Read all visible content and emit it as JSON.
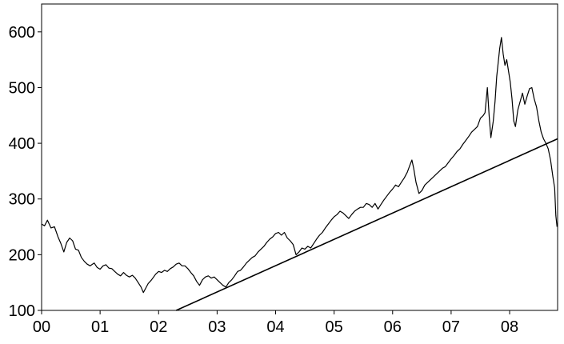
{
  "chart_data": {
    "type": "line",
    "title": "",
    "xlabel": "",
    "ylabel": "",
    "x_ticks": [
      {
        "x": 0,
        "label": "00"
      },
      {
        "x": 1,
        "label": "01"
      },
      {
        "x": 2,
        "label": "02"
      },
      {
        "x": 3,
        "label": "03"
      },
      {
        "x": 4,
        "label": "04"
      },
      {
        "x": 5,
        "label": "05"
      },
      {
        "x": 6,
        "label": "06"
      },
      {
        "x": 7,
        "label": "07"
      },
      {
        "x": 8,
        "label": "08"
      }
    ],
    "y_ticks": [
      100,
      200,
      300,
      400,
      500,
      600
    ],
    "xlim": [
      0,
      8.82
    ],
    "ylim": [
      100,
      650
    ],
    "grid": false,
    "legend": "none",
    "series": [
      {
        "color": "#000000",
        "points": [
          [
            0.0,
            255
          ],
          [
            0.05,
            252
          ],
          [
            0.1,
            262
          ],
          [
            0.16,
            248
          ],
          [
            0.22,
            250
          ],
          [
            0.28,
            232
          ],
          [
            0.33,
            220
          ],
          [
            0.38,
            205
          ],
          [
            0.43,
            222
          ],
          [
            0.48,
            230
          ],
          [
            0.53,
            225
          ],
          [
            0.58,
            210
          ],
          [
            0.63,
            208
          ],
          [
            0.68,
            195
          ],
          [
            0.73,
            188
          ],
          [
            0.78,
            183
          ],
          [
            0.83,
            180
          ],
          [
            0.9,
            185
          ],
          [
            0.95,
            177
          ],
          [
            1.0,
            174
          ],
          [
            1.05,
            180
          ],
          [
            1.1,
            182
          ],
          [
            1.15,
            176
          ],
          [
            1.2,
            175
          ],
          [
            1.25,
            170
          ],
          [
            1.3,
            165
          ],
          [
            1.35,
            162
          ],
          [
            1.4,
            168
          ],
          [
            1.45,
            163
          ],
          [
            1.5,
            160
          ],
          [
            1.55,
            163
          ],
          [
            1.6,
            158
          ],
          [
            1.65,
            150
          ],
          [
            1.7,
            142
          ],
          [
            1.74,
            132
          ],
          [
            1.78,
            140
          ],
          [
            1.82,
            148
          ],
          [
            1.88,
            155
          ],
          [
            1.95,
            165
          ],
          [
            2.0,
            170
          ],
          [
            2.05,
            168
          ],
          [
            2.1,
            172
          ],
          [
            2.15,
            170
          ],
          [
            2.2,
            175
          ],
          [
            2.25,
            178
          ],
          [
            2.3,
            183
          ],
          [
            2.35,
            185
          ],
          [
            2.4,
            180
          ],
          [
            2.45,
            180
          ],
          [
            2.5,
            175
          ],
          [
            2.55,
            168
          ],
          [
            2.6,
            162
          ],
          [
            2.65,
            152
          ],
          [
            2.7,
            145
          ],
          [
            2.75,
            155
          ],
          [
            2.8,
            160
          ],
          [
            2.85,
            162
          ],
          [
            2.9,
            158
          ],
          [
            2.95,
            160
          ],
          [
            3.0,
            155
          ],
          [
            3.05,
            150
          ],
          [
            3.1,
            145
          ],
          [
            3.15,
            142
          ],
          [
            3.2,
            150
          ],
          [
            3.25,
            155
          ],
          [
            3.3,
            162
          ],
          [
            3.35,
            170
          ],
          [
            3.4,
            172
          ],
          [
            3.45,
            178
          ],
          [
            3.5,
            185
          ],
          [
            3.55,
            190
          ],
          [
            3.6,
            195
          ],
          [
            3.65,
            198
          ],
          [
            3.7,
            205
          ],
          [
            3.75,
            210
          ],
          [
            3.8,
            215
          ],
          [
            3.85,
            222
          ],
          [
            3.9,
            228
          ],
          [
            3.95,
            232
          ],
          [
            4.0,
            238
          ],
          [
            4.05,
            240
          ],
          [
            4.1,
            235
          ],
          [
            4.15,
            240
          ],
          [
            4.2,
            230
          ],
          [
            4.25,
            225
          ],
          [
            4.3,
            218
          ],
          [
            4.35,
            200
          ],
          [
            4.4,
            205
          ],
          [
            4.45,
            212
          ],
          [
            4.5,
            210
          ],
          [
            4.55,
            215
          ],
          [
            4.6,
            212
          ],
          [
            4.65,
            220
          ],
          [
            4.7,
            228
          ],
          [
            4.75,
            235
          ],
          [
            4.8,
            240
          ],
          [
            4.85,
            248
          ],
          [
            4.9,
            255
          ],
          [
            4.95,
            262
          ],
          [
            5.0,
            268
          ],
          [
            5.05,
            272
          ],
          [
            5.1,
            278
          ],
          [
            5.15,
            275
          ],
          [
            5.2,
            270
          ],
          [
            5.25,
            265
          ],
          [
            5.3,
            272
          ],
          [
            5.35,
            278
          ],
          [
            5.4,
            282
          ],
          [
            5.45,
            285
          ],
          [
            5.5,
            285
          ],
          [
            5.55,
            292
          ],
          [
            5.6,
            290
          ],
          [
            5.65,
            285
          ],
          [
            5.7,
            292
          ],
          [
            5.75,
            282
          ],
          [
            5.8,
            290
          ],
          [
            5.85,
            298
          ],
          [
            5.9,
            305
          ],
          [
            5.95,
            312
          ],
          [
            6.0,
            318
          ],
          [
            6.05,
            325
          ],
          [
            6.1,
            322
          ],
          [
            6.15,
            330
          ],
          [
            6.2,
            338
          ],
          [
            6.25,
            348
          ],
          [
            6.3,
            362
          ],
          [
            6.33,
            370
          ],
          [
            6.36,
            355
          ],
          [
            6.4,
            330
          ],
          [
            6.45,
            310
          ],
          [
            6.5,
            315
          ],
          [
            6.55,
            325
          ],
          [
            6.6,
            330
          ],
          [
            6.65,
            335
          ],
          [
            6.7,
            340
          ],
          [
            6.75,
            345
          ],
          [
            6.8,
            350
          ],
          [
            6.85,
            355
          ],
          [
            6.9,
            358
          ],
          [
            6.95,
            365
          ],
          [
            7.0,
            372
          ],
          [
            7.05,
            378
          ],
          [
            7.1,
            385
          ],
          [
            7.15,
            390
          ],
          [
            7.2,
            398
          ],
          [
            7.25,
            405
          ],
          [
            7.3,
            412
          ],
          [
            7.35,
            420
          ],
          [
            7.4,
            425
          ],
          [
            7.45,
            430
          ],
          [
            7.5,
            445
          ],
          [
            7.55,
            450
          ],
          [
            7.58,
            455
          ],
          [
            7.62,
            500
          ],
          [
            7.65,
            450
          ],
          [
            7.68,
            410
          ],
          [
            7.72,
            440
          ],
          [
            7.75,
            475
          ],
          [
            7.78,
            520
          ],
          [
            7.8,
            540
          ],
          [
            7.83,
            570
          ],
          [
            7.86,
            590
          ],
          [
            7.89,
            560
          ],
          [
            7.92,
            540
          ],
          [
            7.95,
            550
          ],
          [
            7.98,
            530
          ],
          [
            8.01,
            510
          ],
          [
            8.04,
            480
          ],
          [
            8.07,
            440
          ],
          [
            8.1,
            430
          ],
          [
            8.14,
            460
          ],
          [
            8.18,
            475
          ],
          [
            8.22,
            490
          ],
          [
            8.26,
            470
          ],
          [
            8.3,
            485
          ],
          [
            8.34,
            498
          ],
          [
            8.38,
            500
          ],
          [
            8.42,
            480
          ],
          [
            8.46,
            465
          ],
          [
            8.5,
            440
          ],
          [
            8.54,
            420
          ],
          [
            8.58,
            408
          ],
          [
            8.62,
            400
          ],
          [
            8.66,
            390
          ],
          [
            8.7,
            370
          ],
          [
            8.74,
            340
          ],
          [
            8.77,
            320
          ],
          [
            8.79,
            270
          ],
          [
            8.81,
            250
          ]
        ]
      },
      {
        "color": "#000000",
        "points": [
          [
            2.3,
            100
          ],
          [
            8.82,
            408
          ]
        ]
      }
    ]
  }
}
